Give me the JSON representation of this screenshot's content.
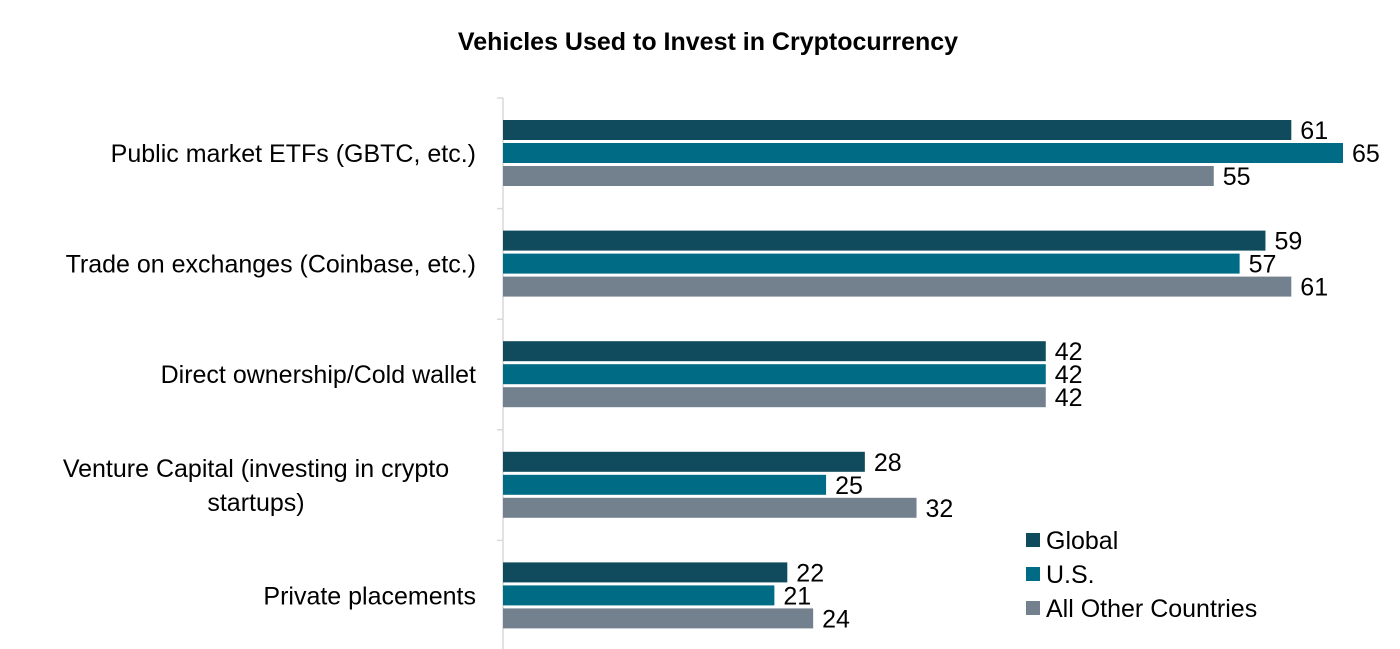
{
  "chart_data": {
    "type": "bar",
    "orientation": "horizontal",
    "title": "Vehicles Used to Invest in Cryptocurrency",
    "categories": [
      [
        "Public market ETFs (GBTC, etc.)"
      ],
      [
        "Trade on exchanges (Coinbase, etc.)"
      ],
      [
        "Direct ownership/Cold wallet"
      ],
      [
        "Venture Capital (investing in crypto",
        "startups)"
      ],
      [
        "Private placements"
      ]
    ],
    "series": [
      {
        "name": "Global",
        "color": "#0f4b5c",
        "values": [
          61,
          59,
          42,
          28,
          22
        ]
      },
      {
        "name": "U.S.",
        "color": "#006b84",
        "values": [
          65,
          57,
          42,
          25,
          21
        ]
      },
      {
        "name": "All Other Countries",
        "color": "#73818f",
        "values": [
          55,
          61,
          42,
          32,
          24
        ]
      }
    ],
    "xlim": [
      0,
      65
    ],
    "grid": false,
    "data_labels": true,
    "legend_position": "bottom-right"
  }
}
